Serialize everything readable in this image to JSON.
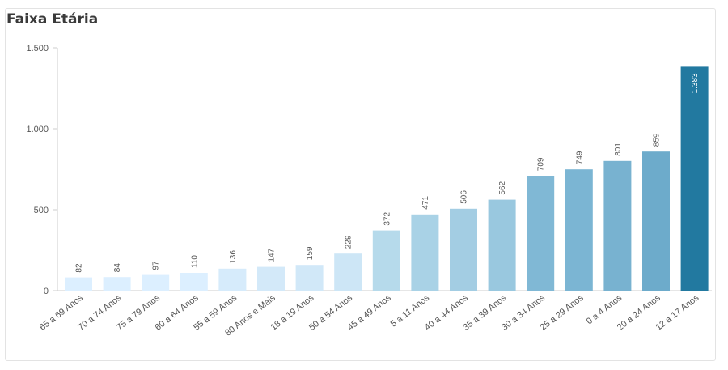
{
  "title": "Faixa Etária",
  "chart_data": {
    "type": "bar",
    "title": "Faixa Etária",
    "xlabel": "",
    "ylabel": "",
    "ylim": [
      0,
      1500
    ],
    "yticks": [
      0,
      500,
      1000,
      1500
    ],
    "ytick_labels": [
      "0",
      "500",
      "1.000",
      "1.500"
    ],
    "grid": false,
    "categories": [
      "65 a 69 Anos",
      "70 a 74 Anos",
      "75 a 79 Anos",
      "60 a 64 Anos",
      "55 a 59 Anos",
      "80 Anos e Mais",
      "18 a 19 Anos",
      "50 a 54 Anos",
      "45 a 49 Anos",
      "5 a 11 Anos",
      "40 a 44 Anos",
      "35 a 39 Anos",
      "30 a 34 Anos",
      "25 a 29 Anos",
      "0 a 4 Anos",
      "20 a 24 Anos",
      "12 a 17 Anos"
    ],
    "values": [
      82,
      84,
      97,
      110,
      136,
      147,
      159,
      229,
      372,
      471,
      506,
      562,
      709,
      749,
      801,
      859,
      1383
    ],
    "value_labels": [
      "82",
      "84",
      "97",
      "110",
      "136",
      "147",
      "159",
      "229",
      "372",
      "471",
      "506",
      "562",
      "709",
      "749",
      "801",
      "859",
      "1.383"
    ],
    "colors": [
      "#dcefff",
      "#dcefff",
      "#dcefff",
      "#dcefff",
      "#d6ebfb",
      "#d3e9f9",
      "#d1e8f8",
      "#cde6f6",
      "#b6daeb",
      "#a9d2e6",
      "#a3cde3",
      "#99c8df",
      "#80b8d5",
      "#7bb5d3",
      "#78b2d0",
      "#6dabcb",
      "#2279a0"
    ]
  }
}
